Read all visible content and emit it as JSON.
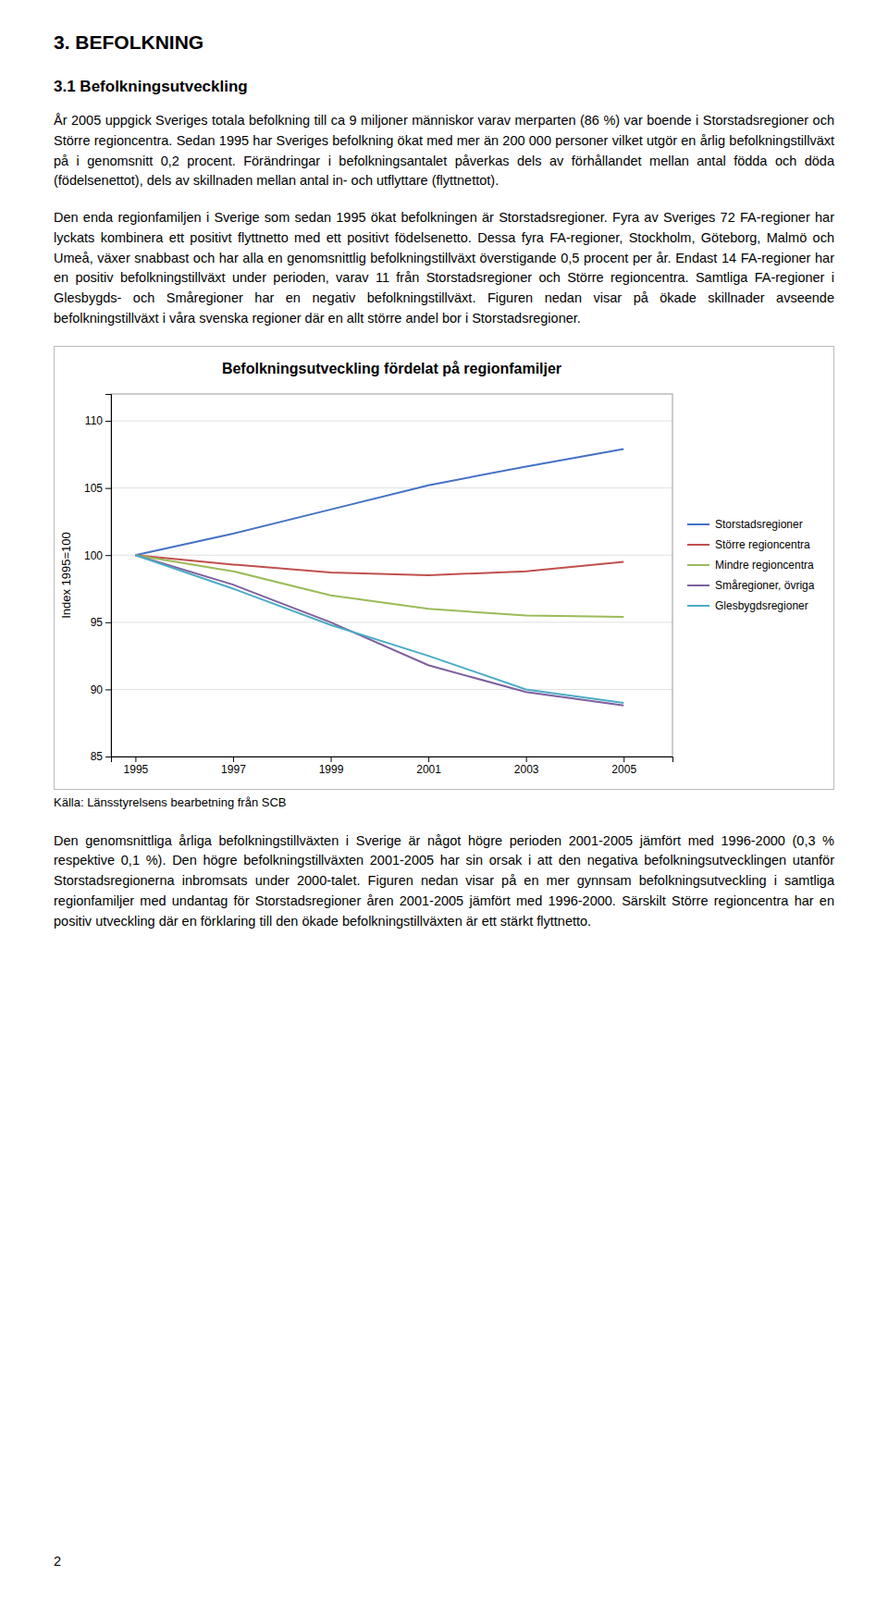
{
  "heading1": "3. BEFOLKNING",
  "heading2": "3.1 Befolkningsutveckling",
  "paragraphs": [
    "År 2005 uppgick Sveriges totala befolkning till ca 9 miljoner människor varav merparten (86 %) var boende i Storstadsregioner och Större regioncentra. Sedan 1995 har Sveriges befolkning ökat med mer än 200 000 personer vilket utgör en årlig befolkningstillväxt på i genomsnitt 0,2 procent. Förändringar i befolkningsantalet påverkas dels av förhållandet mellan antal födda och döda (födelsenettot), dels av skillnaden mellan antal in- och utflyttare (flyttnettot).",
    "Den enda regionfamiljen i Sverige som sedan 1995 ökat befolkningen är Storstadsregioner. Fyra av Sveriges 72 FA-regioner har lyckats kombinera ett positivt flyttnetto med ett positivt födelsenetto. Dessa fyra FA-regioner, Stockholm, Göteborg, Malmö och Umeå, växer snabbast och har alla en genomsnittlig befolkningstillväxt överstigande 0,5 procent per år. Endast 14 FA-regioner har en positiv befolkningstillväxt under perioden, varav 11 från Storstadsregioner och Större regioncentra. Samtliga FA-regioner i Glesbygds- och Småregioner har en negativ befolkningstillväxt. Figuren nedan visar på ökade skillnader avseende befolkningstillväxt i våra svenska regioner där en allt större andel bor i Storstadsregioner.",
    "Den genomsnittliga årliga befolkningstillväxten i Sverige är något högre perioden 2001-2005 jämfört med 1996-2000 (0,3 % respektive 0,1 %). Den högre befolkningstillväxten 2001-2005 har sin orsak i att den negativa befolkningsutvecklingen utanför Storstadsregionerna inbromsats under 2000-talet. Figuren nedan visar på en mer gynnsam befolkningsutveckling i samtliga regionfamiljer med undantag för Storstadsregioner åren 2001-2005 jämfört med 1996-2000. Särskilt Större regioncentra har en positiv utveckling där en förklaring till den ökade befolkningstillväxten är ett stärkt flyttnetto."
  ],
  "source": "Källa: Länsstyrelsens bearbetning från SCB",
  "page_number": "2",
  "chart_data": {
    "type": "line",
    "title": "Befolkningsutveckling fördelat på regionfamiljer",
    "ylabel": "Index 1995=100",
    "x": [
      1995,
      1997,
      1999,
      2001,
      2003,
      2005
    ],
    "series": [
      {
        "name": "Storstadsregioner",
        "color": "#4472C4",
        "values": [
          100.0,
          101.6,
          103.4,
          105.2,
          106.6,
          107.9
        ]
      },
      {
        "name": "Större regioncentra",
        "color": "#C0504D",
        "values": [
          100.0,
          99.3,
          98.7,
          98.5,
          98.8,
          99.5
        ]
      },
      {
        "name": "Mindre regioncentra",
        "color": "#9BBB59",
        "values": [
          100.0,
          98.8,
          97.0,
          96.0,
          95.5,
          95.4
        ]
      },
      {
        "name": "Småregioner, övriga",
        "color": "#7F5F9E",
        "values": [
          100.0,
          97.8,
          95.0,
          91.8,
          89.8,
          88.8
        ]
      },
      {
        "name": "Glesbygdsregioner",
        "color": "#4BACC6",
        "values": [
          100.0,
          97.5,
          94.8,
          92.5,
          90.0,
          89.0
        ]
      }
    ],
    "xlim": [
      1994.5,
      2006.0
    ],
    "ylim": [
      85,
      112
    ],
    "xticks": [
      1995,
      1997,
      1999,
      2001,
      2003,
      2005
    ],
    "yticks": [
      85,
      90,
      95,
      100,
      105,
      110
    ],
    "grid": "y",
    "legend": "right"
  }
}
